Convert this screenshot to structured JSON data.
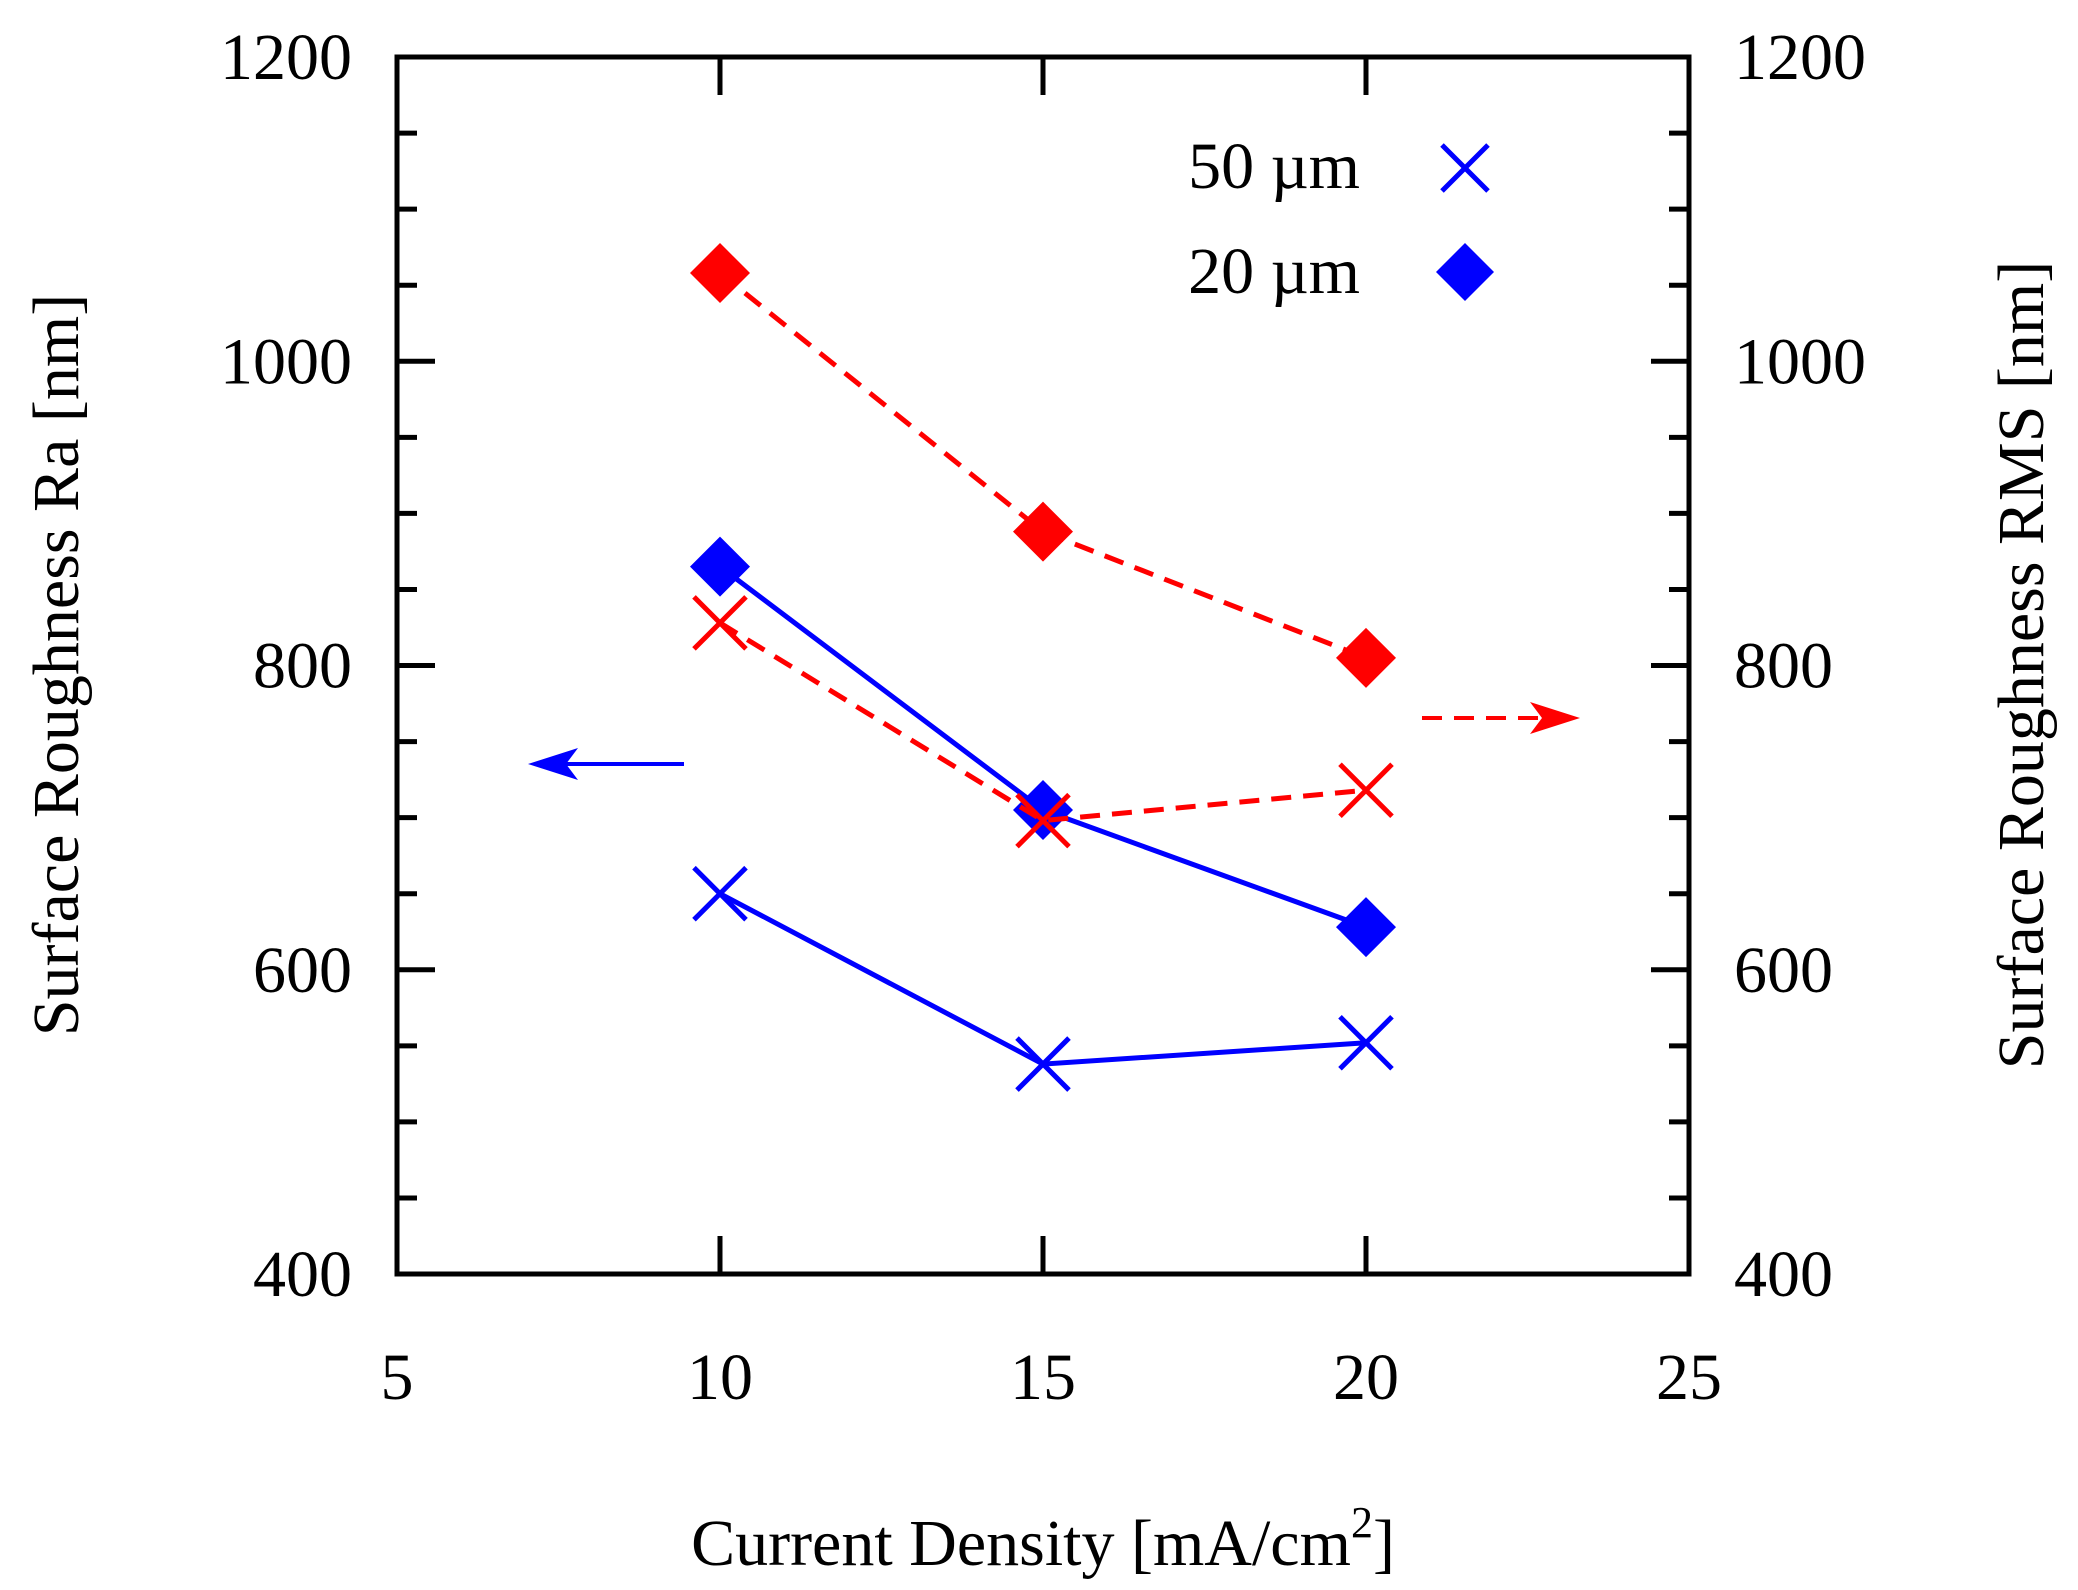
{
  "chart_data": {
    "type": "line",
    "title": "",
    "xlabel": "Current Density [mA/cm",
    "xlabel_sup": "2",
    "xlabel_end": "]",
    "ylabel_left": "Surface Roughness Ra [nm]",
    "ylabel_right": "Surface Roughness RMS [nm]",
    "xlim": [
      5,
      25
    ],
    "ylim": [
      400,
      1200
    ],
    "x_ticks": [
      "5",
      "10",
      "15",
      "20",
      "25"
    ],
    "y_ticks_left": [
      "400",
      "600",
      "800",
      "1000",
      "1200"
    ],
    "y_ticks_right": [
      "400",
      "600",
      "800",
      "1000",
      "1200"
    ],
    "legend": [
      {
        "label": "50 µm",
        "marker": "x"
      },
      {
        "label": "20 µm",
        "marker": "diamond"
      }
    ],
    "series": [
      {
        "name": "Ra 50 µm",
        "axis": "left",
        "color": "#0000ff",
        "dash": false,
        "marker": "x",
        "x": [
          10,
          15,
          20
        ],
        "y": [
          650,
          538,
          552
        ]
      },
      {
        "name": "Ra 20 µm",
        "axis": "left",
        "color": "#0000ff",
        "dash": false,
        "marker": "diamond",
        "x": [
          10,
          15,
          20
        ],
        "y": [
          865,
          705,
          628
        ]
      },
      {
        "name": "RMS 50 µm",
        "axis": "right",
        "color": "#ff0000",
        "dash": true,
        "marker": "x",
        "x": [
          10,
          15,
          20
        ],
        "y": [
          828,
          698,
          718
        ]
      },
      {
        "name": "RMS 20 µm",
        "axis": "right",
        "color": "#ff0000",
        "dash": true,
        "marker": "diamond",
        "x": [
          10,
          15,
          20
        ],
        "y": [
          1058,
          888,
          805
        ]
      }
    ],
    "annotations": [
      {
        "type": "arrow",
        "direction": "left",
        "meaning": "Ra uses left axis",
        "color": "#0000ff",
        "dash": false
      },
      {
        "type": "arrow",
        "direction": "right",
        "meaning": "RMS uses right axis",
        "color": "#ff0000",
        "dash": true
      }
    ]
  }
}
